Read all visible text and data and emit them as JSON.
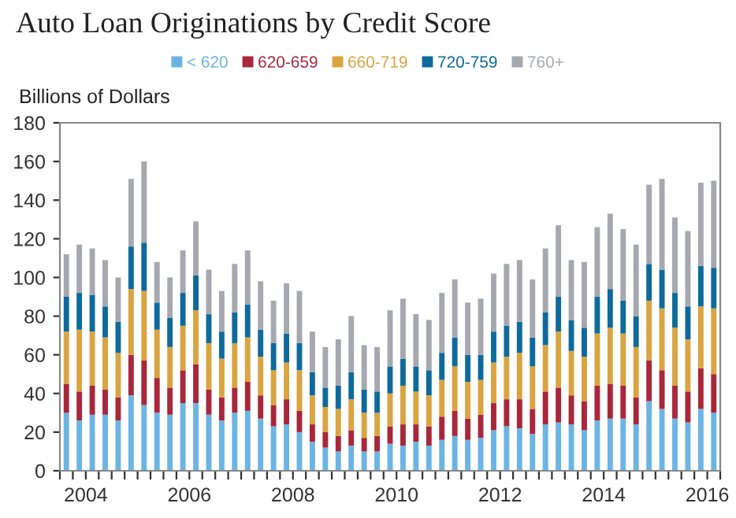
{
  "chart_data": {
    "type": "bar",
    "stacked": true,
    "title": "Auto Loan Originations by Credit Score",
    "ylabel": "Billions of Dollars",
    "x": [
      2004.125,
      2004.375,
      2004.625,
      2004.875,
      2005.125,
      2005.375,
      2005.625,
      2005.875,
      2006.125,
      2006.375,
      2006.625,
      2006.875,
      2007.125,
      2007.375,
      2007.625,
      2007.875,
      2008.125,
      2008.375,
      2008.625,
      2008.875,
      2009.125,
      2009.375,
      2009.625,
      2009.875,
      2010.125,
      2010.375,
      2010.625,
      2010.875,
      2011.125,
      2011.375,
      2011.625,
      2011.875,
      2012.125,
      2012.375,
      2012.625,
      2012.875,
      2013.125,
      2013.375,
      2013.625,
      2013.875,
      2014.125,
      2014.375,
      2014.625,
      2014.875,
      2015.125,
      2015.375,
      2015.625,
      2015.875,
      2016.125,
      2016.375,
      2016.625
    ],
    "series": [
      {
        "name": "< 620",
        "color": "#6cb4e4",
        "values": [
          30,
          26,
          29,
          29,
          26,
          39,
          34,
          30,
          29,
          35,
          35,
          29,
          26,
          30,
          31,
          27,
          23,
          24,
          20,
          15,
          12,
          10,
          13,
          10,
          10,
          14,
          13,
          15,
          13,
          16,
          18,
          16,
          17,
          21,
          23,
          22,
          19,
          24,
          25,
          24,
          21,
          26,
          27,
          27,
          24,
          36,
          32,
          27,
          25,
          32,
          30
        ]
      },
      {
        "name": "620-659",
        "color": "#a8273a",
        "values": [
          15,
          15,
          15,
          13,
          12,
          21,
          23,
          18,
          14,
          17,
          20,
          13,
          12,
          13,
          15,
          12,
          11,
          13,
          11,
          9,
          8,
          8,
          8,
          7,
          8,
          9,
          11,
          9,
          10,
          12,
          13,
          11,
          12,
          14,
          14,
          15,
          13,
          17,
          18,
          15,
          15,
          18,
          18,
          17,
          14,
          21,
          20,
          17,
          16,
          21,
          20
        ]
      },
      {
        "name": "660-719",
        "color": "#d9a441",
        "values": [
          27,
          32,
          28,
          27,
          23,
          34,
          36,
          25,
          21,
          23,
          28,
          24,
          20,
          23,
          23,
          20,
          18,
          19,
          21,
          15,
          13,
          14,
          16,
          13,
          12,
          17,
          20,
          17,
          16,
          19,
          23,
          19,
          18,
          21,
          22,
          24,
          22,
          24,
          29,
          23,
          23,
          27,
          29,
          27,
          26,
          31,
          32,
          30,
          27,
          32,
          34
        ]
      },
      {
        "name": "720-759",
        "color": "#0f6a9c",
        "values": [
          18,
          19,
          19,
          16,
          16,
          22,
          25,
          14,
          15,
          17,
          18,
          15,
          14,
          16,
          17,
          14,
          14,
          15,
          14,
          12,
          10,
          12,
          14,
          12,
          11,
          14,
          14,
          13,
          13,
          14,
          15,
          14,
          13,
          16,
          16,
          16,
          15,
          17,
          18,
          16,
          15,
          19,
          20,
          17,
          16,
          19,
          20,
          18,
          17,
          21,
          21
        ]
      },
      {
        "name": "760+",
        "color": "#a6a8b0",
        "values": [
          22,
          25,
          24,
          24,
          23,
          35,
          42,
          21,
          21,
          22,
          28,
          23,
          21,
          25,
          28,
          25,
          22,
          26,
          27,
          21,
          21,
          24,
          29,
          23,
          23,
          29,
          31,
          27,
          26,
          31,
          30,
          27,
          29,
          30,
          32,
          32,
          30,
          33,
          37,
          31,
          34,
          36,
          39,
          37,
          37,
          41,
          47,
          39,
          39,
          43,
          45
        ]
      }
    ],
    "xlim": [
      2004,
      2016.75
    ],
    "xticks": [
      {
        "value": 2004.0,
        "label": null
      },
      {
        "value": 2004.25,
        "label": null
      },
      {
        "value": 2004.5,
        "label": "2004"
      },
      {
        "value": 2004.75,
        "label": null
      },
      {
        "value": 2005.0,
        "label": null
      },
      {
        "value": 2005.25,
        "label": null
      },
      {
        "value": 2005.5,
        "label": null
      },
      {
        "value": 2005.75,
        "label": null
      },
      {
        "value": 2006.0,
        "label": null
      },
      {
        "value": 2006.25,
        "label": null
      },
      {
        "value": 2006.5,
        "label": "2006"
      },
      {
        "value": 2006.75,
        "label": null
      },
      {
        "value": 2007.0,
        "label": null
      },
      {
        "value": 2007.25,
        "label": null
      },
      {
        "value": 2007.5,
        "label": null
      },
      {
        "value": 2007.75,
        "label": null
      },
      {
        "value": 2008.0,
        "label": null
      },
      {
        "value": 2008.25,
        "label": null
      },
      {
        "value": 2008.5,
        "label": "2008"
      },
      {
        "value": 2008.75,
        "label": null
      },
      {
        "value": 2009.0,
        "label": null
      },
      {
        "value": 2009.25,
        "label": null
      },
      {
        "value": 2009.5,
        "label": null
      },
      {
        "value": 2009.75,
        "label": null
      },
      {
        "value": 2010.0,
        "label": null
      },
      {
        "value": 2010.25,
        "label": null
      },
      {
        "value": 2010.5,
        "label": "2010"
      },
      {
        "value": 2010.75,
        "label": null
      },
      {
        "value": 2011.0,
        "label": null
      },
      {
        "value": 2011.25,
        "label": null
      },
      {
        "value": 2011.5,
        "label": null
      },
      {
        "value": 2011.75,
        "label": null
      },
      {
        "value": 2012.0,
        "label": null
      },
      {
        "value": 2012.25,
        "label": null
      },
      {
        "value": 2012.5,
        "label": "2012"
      },
      {
        "value": 2012.75,
        "label": null
      },
      {
        "value": 2013.0,
        "label": null
      },
      {
        "value": 2013.25,
        "label": null
      },
      {
        "value": 2013.5,
        "label": null
      },
      {
        "value": 2013.75,
        "label": null
      },
      {
        "value": 2014.0,
        "label": null
      },
      {
        "value": 2014.25,
        "label": null
      },
      {
        "value": 2014.5,
        "label": "2014"
      },
      {
        "value": 2014.75,
        "label": null
      },
      {
        "value": 2015.0,
        "label": null
      },
      {
        "value": 2015.25,
        "label": null
      },
      {
        "value": 2015.5,
        "label": null
      },
      {
        "value": 2015.75,
        "label": null
      },
      {
        "value": 2016.0,
        "label": null
      },
      {
        "value": 2016.25,
        "label": null
      },
      {
        "value": 2016.5,
        "label": "2016"
      },
      {
        "value": 2016.75,
        "label": null
      }
    ],
    "ylim": [
      0,
      180
    ],
    "yticks": [
      0,
      20,
      40,
      60,
      80,
      100,
      120,
      140,
      160,
      180
    ],
    "grid": false,
    "legend": "top"
  }
}
